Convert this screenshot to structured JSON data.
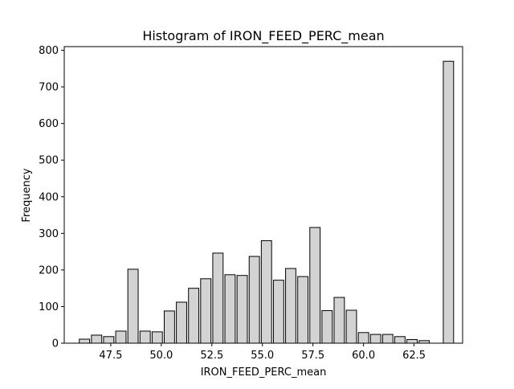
{
  "chart_data": {
    "type": "bar",
    "title": "Histogram of IRON_FEED_PERC_mean",
    "xlabel": "IRON_FEED_PERC_mean",
    "ylabel": "Frequency",
    "xlim": [
      45.2,
      64.9
    ],
    "ylim": [
      0,
      810
    ],
    "xticks": [
      47.5,
      50.0,
      52.5,
      55.0,
      57.5,
      60.0,
      62.5
    ],
    "xtick_labels": [
      "47.5",
      "50.0",
      "52.5",
      "55.0",
      "57.5",
      "60.0",
      "62.5"
    ],
    "yticks": [
      0,
      100,
      200,
      300,
      400,
      500,
      600,
      700,
      800
    ],
    "ytick_labels": [
      "0",
      "100",
      "200",
      "300",
      "400",
      "500",
      "600",
      "700",
      "800"
    ],
    "bin_edges": [
      45.9,
      46.5,
      47.1,
      47.7,
      48.3,
      48.9,
      49.5,
      50.1,
      50.7,
      51.3,
      51.9,
      52.5,
      53.1,
      53.7,
      54.3,
      54.9,
      55.5,
      56.1,
      56.7,
      57.3,
      57.9,
      58.5,
      59.1,
      59.7,
      60.3,
      60.9,
      61.5,
      62.1,
      62.7,
      63.3,
      63.9,
      64.5
    ],
    "values": [
      11,
      22,
      18,
      33,
      202,
      33,
      31,
      88,
      112,
      150,
      176,
      246,
      187,
      185,
      237,
      280,
      172,
      204,
      182,
      316,
      89,
      125,
      90,
      29,
      24,
      24,
      18,
      10,
      7,
      0,
      770
    ],
    "bar_color": "#d3d3d3",
    "edge_color": "#000000",
    "grid": false,
    "legend": "none"
  }
}
